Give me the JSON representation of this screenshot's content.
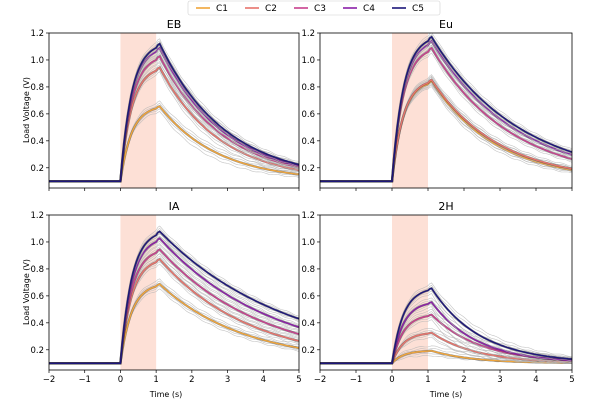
{
  "chart_data": {
    "type": "line",
    "legend": {
      "placement": "top-center",
      "entries": [
        {
          "name": "C1",
          "color": "#f0a53a"
        },
        {
          "name": "C2",
          "color": "#e8736c"
        },
        {
          "name": "C3",
          "color": "#c8408e"
        },
        {
          "name": "C4",
          "color": "#8b1fa8"
        },
        {
          "name": "C5",
          "color": "#1c167a"
        }
      ]
    },
    "xlabel": "Time (s)",
    "ylabel": "Load Voltage (V)",
    "xlim": [
      -2,
      5
    ],
    "ylim": [
      0.05,
      1.2
    ],
    "xticks": [
      "−2",
      "−1",
      "0",
      "1",
      "2",
      "3",
      "4",
      "5"
    ],
    "yticks": [
      "0.2",
      "0.4",
      "0.6",
      "0.8",
      "1.0",
      "1.2"
    ],
    "stimulus_window": [
      0,
      1
    ],
    "baseline": 0.1,
    "panels": [
      {
        "title": "EB",
        "peaks": [
          0.64,
          0.92,
          1.0,
          1.06,
          1.09
        ],
        "tail_5s": [
          0.15,
          0.18,
          0.2,
          0.21,
          0.22
        ]
      },
      {
        "title": "Eu",
        "peaks": [
          0.82,
          0.83,
          1.06,
          1.11,
          1.14
        ],
        "tail_5s": [
          0.18,
          0.19,
          0.26,
          0.29,
          0.31
        ]
      },
      {
        "title": "IA",
        "peaks": [
          0.67,
          0.85,
          0.92,
          1.0,
          1.05
        ],
        "tail_5s": [
          0.21,
          0.26,
          0.31,
          0.36,
          0.42
        ]
      },
      {
        "title": "2H",
        "peaks": [
          0.19,
          0.32,
          0.45,
          0.54,
          0.64
        ],
        "tail_5s": [
          0.1,
          0.11,
          0.12,
          0.12,
          0.13
        ]
      }
    ]
  }
}
